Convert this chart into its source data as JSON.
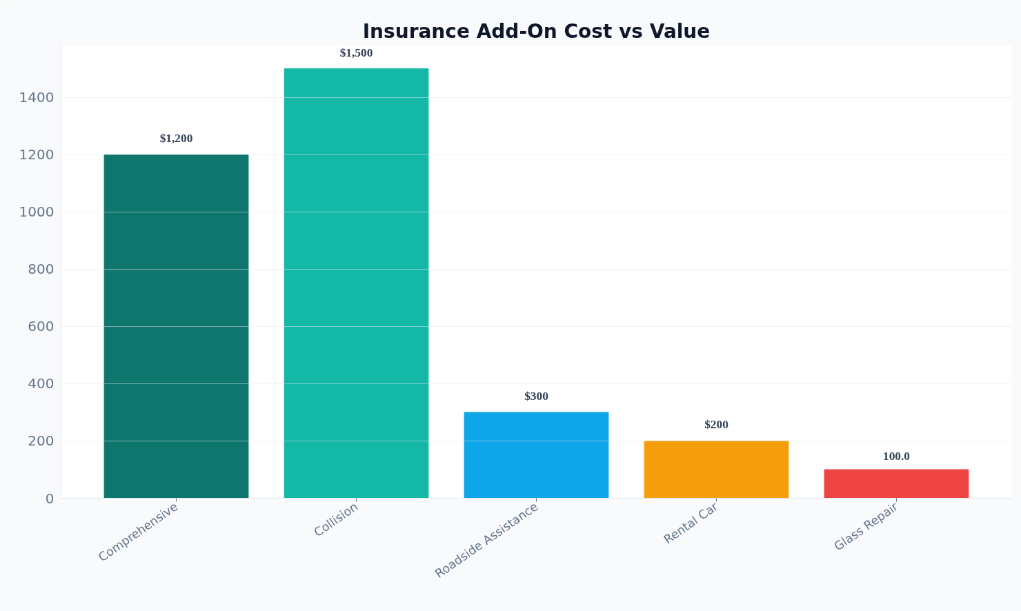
{
  "chart_data": {
    "type": "bar",
    "title": "Insurance Add-On Cost vs Value",
    "categories": [
      "Comprehensive",
      "Collision",
      "Roadside Assistance",
      "Rental Car",
      "Glass Repair"
    ],
    "values": [
      1200,
      1500,
      300,
      200,
      100
    ],
    "colors": [
      "#0f766e",
      "#14b8a6",
      "#0ea5e9",
      "#f59e0b",
      "#ef4444"
    ],
    "value_labels": [
      "$1,200",
      "$1,500",
      "$300",
      "$200",
      "100.0"
    ],
    "ylim": [
      0,
      1580
    ],
    "yticks": [
      0,
      200,
      400,
      600,
      800,
      1000,
      1200,
      1400
    ],
    "grid": "y"
  }
}
